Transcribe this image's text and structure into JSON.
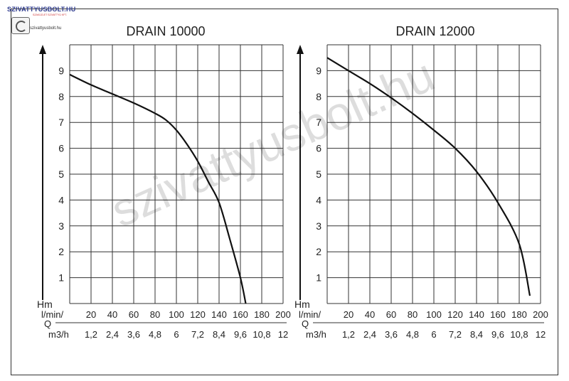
{
  "logo": {
    "brand": "SZIVATTYUSBOLT.HU",
    "tagline": "SZAKÜZLET SZIVATTYÚ KFT.",
    "site": "szivattyusbolt.hu",
    "icon": "pump-logo-icon"
  },
  "watermark": "szivattyusbolt.hu",
  "chart_data": [
    {
      "type": "line",
      "title": "DRAIN 10000",
      "ylabel": "Hm",
      "xlabel": "Q",
      "x_label_flow": "l/min",
      "x_label_m3h": "m3/h",
      "y_ticks": [
        "1",
        "2",
        "3",
        "4",
        "5",
        "6",
        "7",
        "8",
        "9"
      ],
      "x_ticks_lmin": [
        "20",
        "40",
        "60",
        "80",
        "100",
        "120",
        "140",
        "160",
        "180",
        "200"
      ],
      "x_ticks_m3h": [
        "1,2",
        "2,4",
        "3,6",
        "4,8",
        "6",
        "7,2",
        "8,4",
        "9,6",
        "10,8",
        "12"
      ],
      "xlim": [
        0,
        200
      ],
      "ylim": [
        0,
        10
      ],
      "grid": true,
      "series": [
        {
          "x": [
            0,
            20,
            40,
            60,
            80,
            90,
            100,
            110,
            120,
            130,
            140,
            150,
            160,
            165
          ],
          "y": [
            8.85,
            8.45,
            8.1,
            7.75,
            7.35,
            7.1,
            6.7,
            6.15,
            5.5,
            4.7,
            3.9,
            2.5,
            1.0,
            0.0
          ]
        }
      ]
    },
    {
      "type": "line",
      "title": "DRAIN 12000",
      "ylabel": "Hm",
      "xlabel": "Q",
      "x_label_flow": "l/min",
      "x_label_m3h": "m3/h",
      "y_ticks": [
        "1",
        "2",
        "3",
        "4",
        "5",
        "6",
        "7",
        "8",
        "9"
      ],
      "x_ticks_lmin": [
        "20",
        "40",
        "60",
        "80",
        "100",
        "120",
        "140",
        "160",
        "180",
        "200"
      ],
      "x_ticks_m3h": [
        "1,2",
        "2,4",
        "3,6",
        "4,8",
        "6",
        "7,2",
        "8,4",
        "9,6",
        "10,8",
        "12"
      ],
      "xlim": [
        0,
        200
      ],
      "ylim": [
        0,
        10
      ],
      "grid": true,
      "series": [
        {
          "x": [
            0,
            20,
            40,
            60,
            80,
            100,
            120,
            140,
            160,
            180,
            190
          ],
          "y": [
            9.5,
            9.0,
            8.5,
            7.95,
            7.35,
            6.7,
            6.0,
            5.1,
            3.9,
            2.3,
            0.3
          ]
        }
      ]
    }
  ]
}
